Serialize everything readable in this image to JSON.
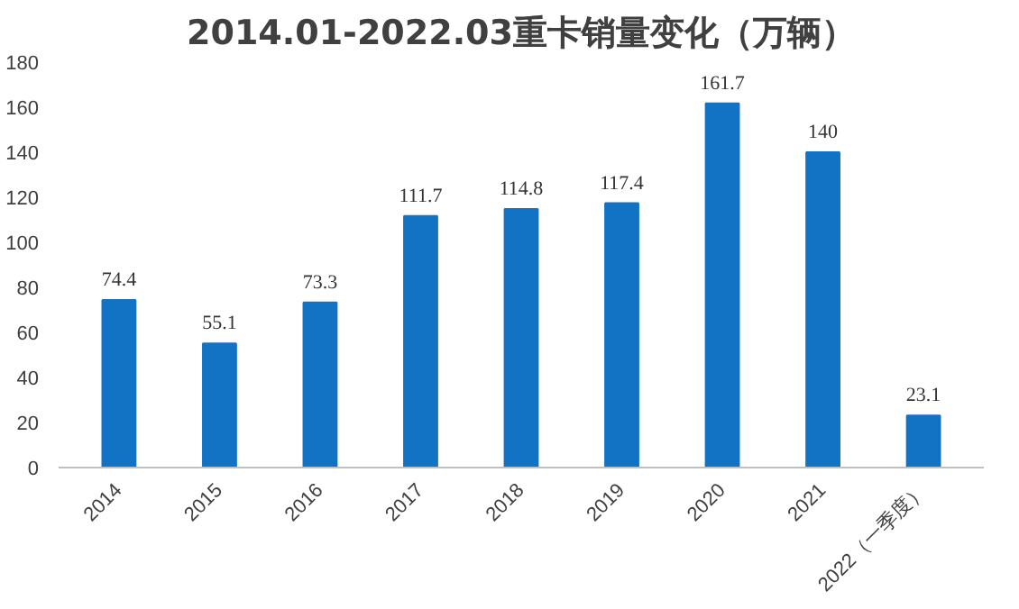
{
  "chart_data": {
    "type": "bar",
    "title": "2014.01-2022.03重卡销量变化（万辆）",
    "categories": [
      "2014",
      "2015",
      "2016",
      "2017",
      "2018",
      "2019",
      "2020",
      "2021",
      "2022（一季度）"
    ],
    "values": [
      74.4,
      55.1,
      73.3,
      111.7,
      114.8,
      117.4,
      161.7,
      140,
      23.1
    ],
    "color": "#1272c4",
    "ylim": [
      0,
      180
    ],
    "yticks": [
      0,
      20,
      40,
      60,
      80,
      100,
      120,
      140,
      160,
      180
    ],
    "data_labels": true,
    "grid": false
  }
}
